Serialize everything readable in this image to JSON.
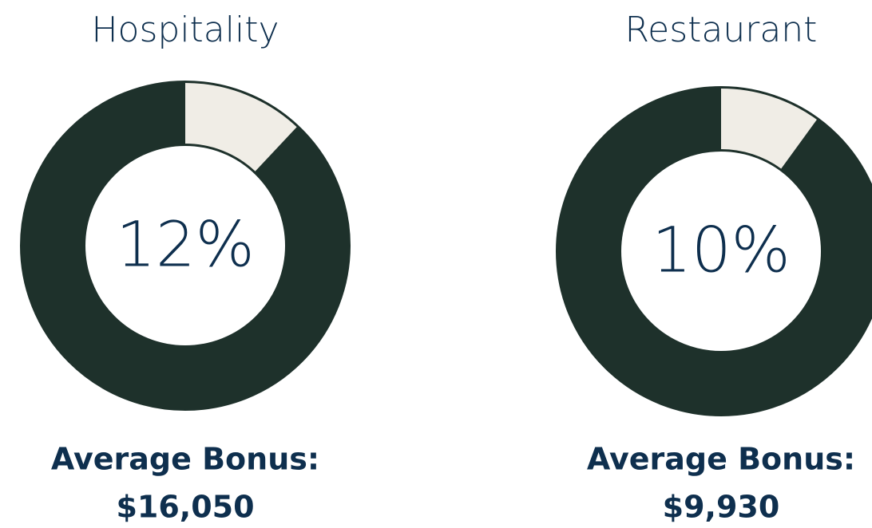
{
  "chart_data": [
    {
      "type": "donut",
      "title": "Hospitality",
      "values": [
        12
      ],
      "value_labels": [
        "12%"
      ],
      "color": "#f0ede6",
      "track_color": "#1e312b",
      "annotations": [
        "Average Bonus:",
        "$16,050"
      ]
    },
    {
      "type": "donut",
      "title": "Restaurant",
      "values": [
        10
      ],
      "value_labels": [
        "10%"
      ],
      "color": "#f0ede6",
      "track_color": "#1e312b",
      "annotations": [
        "Average Bonus:",
        "$9,930"
      ]
    }
  ]
}
